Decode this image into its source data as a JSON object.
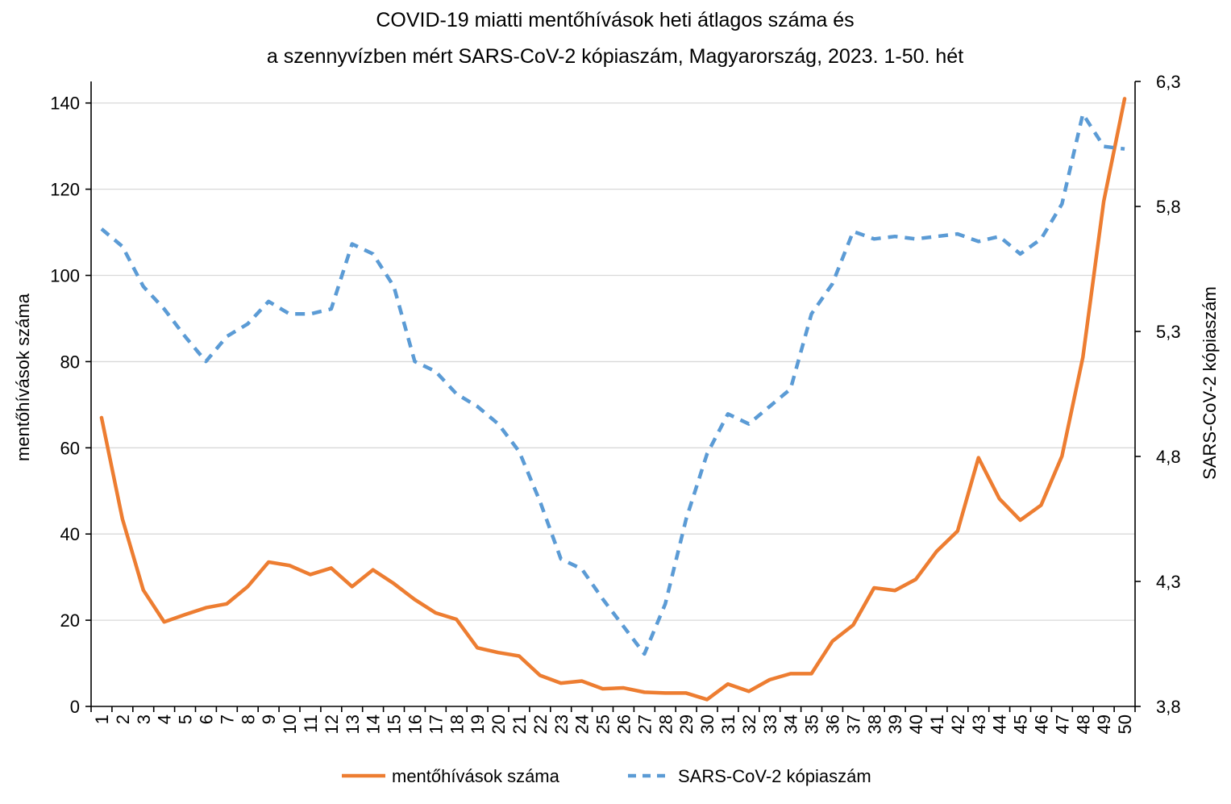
{
  "chart_data": {
    "type": "line",
    "title": [
      "COVID-19 miatti mentőhívások heti átlagos száma és",
      "a szennyvízben mért SARS-CoV-2 kópiaszám, Magyarország, 2023. 1-50. hét"
    ],
    "xlabel": "",
    "y_left_label": "mentőhívások száma",
    "y_right_label": "SARS-CoV-2 kópiaszám",
    "y_left_lim": [
      0,
      145
    ],
    "y_left_ticks": [
      "0",
      "20",
      "40",
      "60",
      "80",
      "100",
      "120",
      "140"
    ],
    "y_left_tick_values": [
      0,
      20,
      40,
      60,
      80,
      100,
      120,
      140
    ],
    "y_right_lim": [
      3.8,
      6.3
    ],
    "y_right_ticks": [
      "3,8",
      "4,3",
      "4,8",
      "5,3",
      "5,8",
      "6,3"
    ],
    "y_right_tick_values": [
      3.8,
      4.3,
      4.8,
      5.3,
      5.8,
      6.3
    ],
    "grid": true,
    "legend_position": "bottom",
    "categories": [
      "1",
      "2",
      "3",
      "4",
      "5",
      "6",
      "7",
      "8",
      "9",
      "10",
      "11",
      "12",
      "13",
      "14",
      "15",
      "16",
      "17",
      "18",
      "19",
      "20",
      "21",
      "22",
      "23",
      "24",
      "25",
      "26",
      "27",
      "28",
      "29",
      "30",
      "31",
      "32",
      "33",
      "34",
      "35",
      "36",
      "37",
      "38",
      "39",
      "40",
      "41",
      "42",
      "43",
      "44",
      "45",
      "46",
      "47",
      "48",
      "49",
      "50"
    ],
    "series": [
      {
        "name": "mentőhívások száma",
        "axis": "left",
        "color": "#ED7D31",
        "style": "solid",
        "values": [
          67,
          43.5,
          27,
          19.6,
          21.3,
          22.9,
          23.8,
          27.8,
          33.5,
          32.7,
          30.6,
          32.1,
          27.8,
          31.7,
          28.5,
          24.8,
          21.7,
          20.2,
          13.6,
          12.5,
          11.7,
          7.2,
          5.4,
          5.9,
          4.1,
          4.3,
          3.3,
          3.1,
          3.1,
          1.6,
          5.2,
          3.5,
          6.2,
          7.6,
          7.6,
          15.1,
          18.9,
          27.5,
          26.9,
          29.5,
          36.0,
          40.7,
          57.7,
          48.2,
          43.2,
          46.7,
          58.1,
          81.0,
          117.2,
          141.0
        ]
      },
      {
        "name": "SARS-CoV-2 kópiaszám",
        "axis": "right",
        "color": "#5B9BD5",
        "style": "dashed",
        "values": [
          5.71,
          5.64,
          5.48,
          5.39,
          5.28,
          5.18,
          5.28,
          5.33,
          5.42,
          5.37,
          5.37,
          5.39,
          5.65,
          5.61,
          5.48,
          5.18,
          5.14,
          5.05,
          5.0,
          4.93,
          4.82,
          4.62,
          4.39,
          4.35,
          4.23,
          4.12,
          4.01,
          4.21,
          4.55,
          4.81,
          4.97,
          4.93,
          5.0,
          5.07,
          5.37,
          5.49,
          5.7,
          5.67,
          5.68,
          5.67,
          5.68,
          5.69,
          5.66,
          5.68,
          5.61,
          5.67,
          5.81,
          6.17,
          6.04,
          6.03
        ]
      }
    ]
  }
}
